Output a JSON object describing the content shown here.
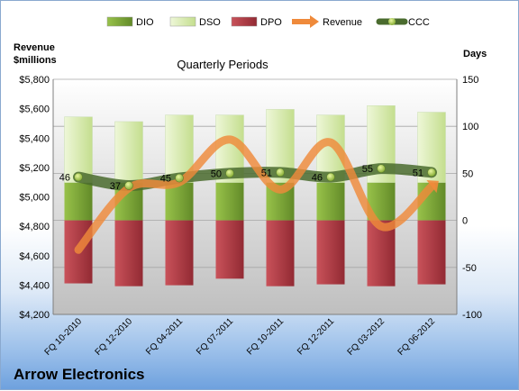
{
  "chart_data": {
    "type": "bar",
    "title": "Quarterly Periods",
    "company": "Arrow Electronics",
    "ylabel_left": [
      "Revenue",
      "$millions"
    ],
    "ylabel_right": "Days",
    "categories": [
      "FQ 10-2010",
      "FQ 12-2010",
      "FQ 04-2011",
      "FQ 07-2011",
      "FQ 10-2011",
      "FQ 12-2011",
      "FQ 03-2012",
      "FQ 06-2012"
    ],
    "y_left": {
      "min": 4200,
      "max": 5800,
      "step": 200,
      "ticks": [
        "$4,200",
        "$4,400",
        "$4,600",
        "$4,800",
        "$5,000",
        "$5,200",
        "$5,400",
        "$5,600",
        "$5,800"
      ]
    },
    "y_right": {
      "min": -100,
      "max": 150,
      "step": 50,
      "ticks": [
        "-100",
        "-50",
        "0",
        "50",
        "100",
        "150"
      ]
    },
    "legend": {
      "position": "top",
      "entries": [
        "DIO",
        "DSO",
        "DPO",
        "Revenue",
        "CCC"
      ]
    },
    "series": [
      {
        "name": "DIO",
        "axis": "right",
        "type": "bar",
        "values": [
          40,
          40,
          40,
          40,
          40,
          40,
          40,
          40
        ]
      },
      {
        "name": "DSO",
        "axis": "right",
        "type": "bar",
        "values": [
          110,
          105,
          112,
          112,
          118,
          112,
          122,
          115
        ]
      },
      {
        "name": "DPO",
        "axis": "right",
        "type": "bar",
        "values": [
          -67,
          -70,
          -69,
          -62,
          -70,
          -68,
          -70,
          -68
        ]
      },
      {
        "name": "Revenue",
        "axis": "left",
        "type": "line",
        "values": [
          4640,
          5060,
          5100,
          5390,
          5050,
          5370,
          4800,
          5070
        ]
      },
      {
        "name": "CCC",
        "axis": "right",
        "type": "line",
        "values": [
          46,
          37,
          45,
          50,
          51,
          46,
          55,
          51
        ],
        "labels": [
          "46",
          "37",
          "45",
          "50",
          "51",
          "46",
          "55",
          "51"
        ]
      }
    ],
    "colors": {
      "DIO": "#7ea33a",
      "DSO": "#d8ebb0",
      "DPO": "#b63a43",
      "Revenue": "#ef8a3b",
      "CCC": "#4a6b2e"
    }
  }
}
